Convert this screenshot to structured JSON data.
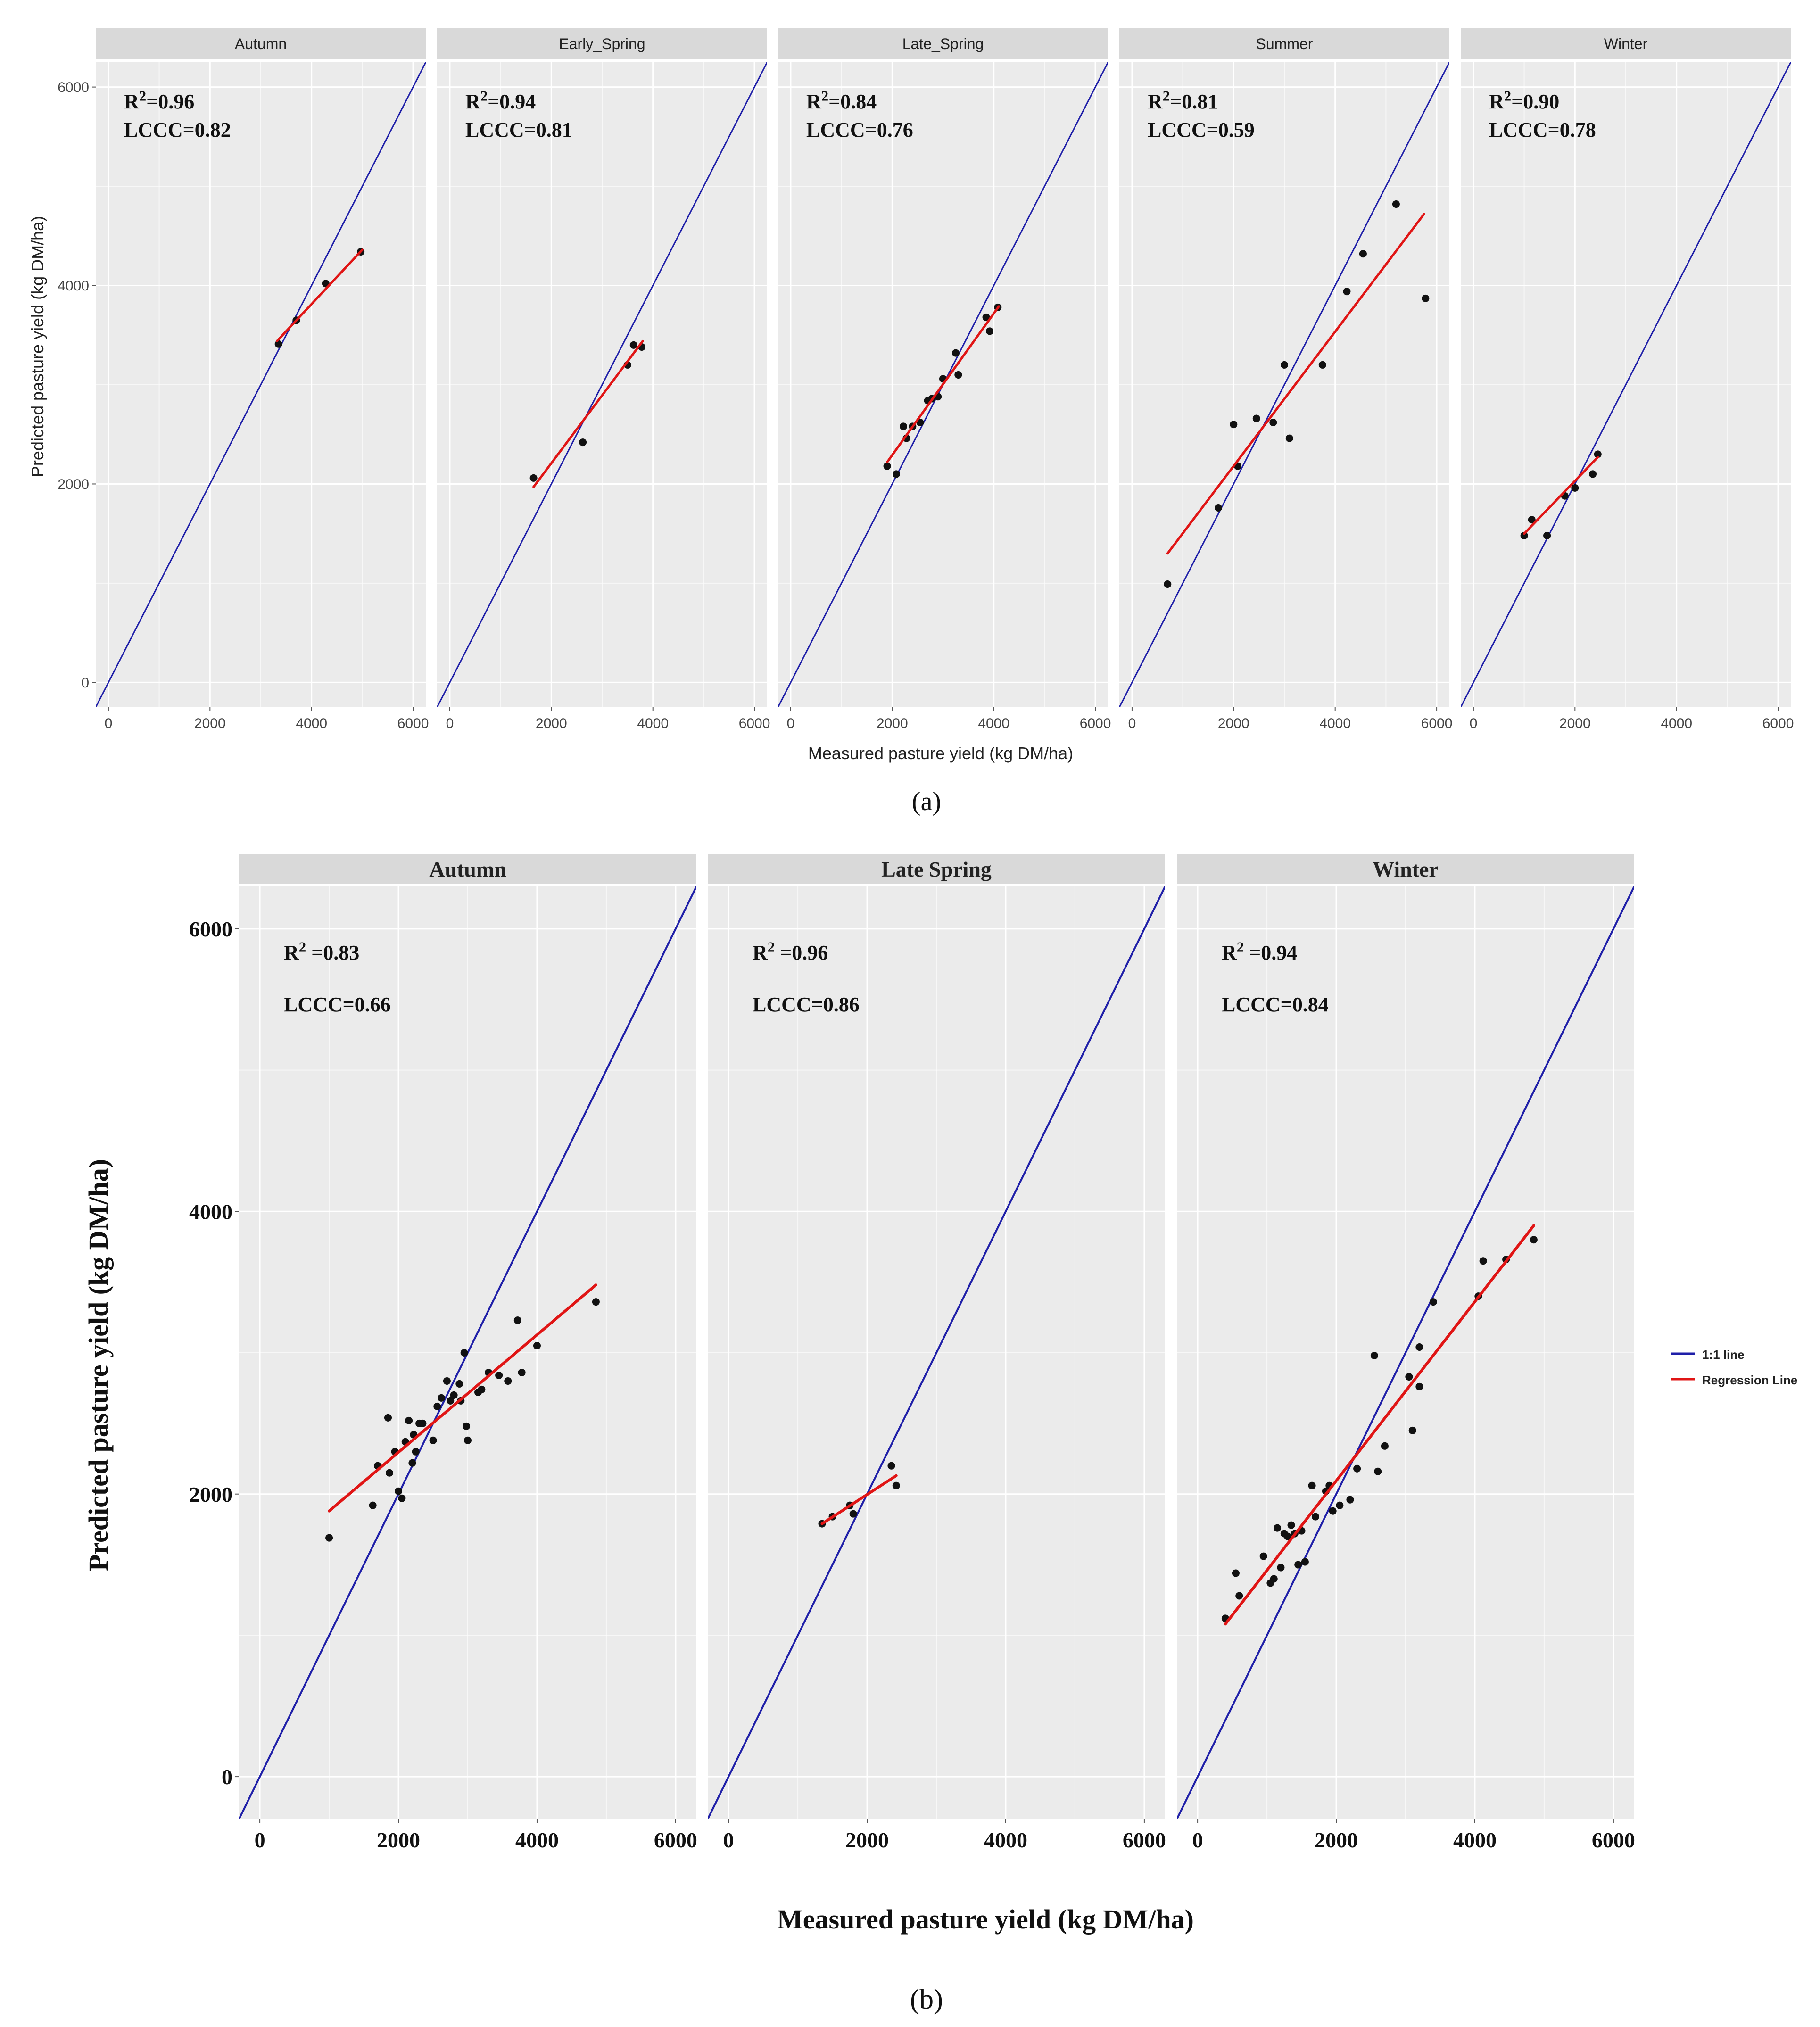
{
  "figure": {
    "panel_a_label": "(a)",
    "panel_b_label": "(b)",
    "colors": {
      "panel_bg": "#ebebeb",
      "strip_bg": "#d9d9d9",
      "grid": "#ffffff",
      "one_to_one": "#1f1fa8",
      "regression": "#e01515",
      "points": "#111111"
    }
  },
  "chart_data": [
    {
      "type": "scatter",
      "panel": "a",
      "xlabel": "Measured pasture yield (kg DM/ha)",
      "ylabel": "Predicted pasture yield (kg DM/ha)",
      "xlim": [
        -250,
        6250
      ],
      "ylim": [
        -250,
        6250
      ],
      "xticks": [
        0,
        2000,
        4000,
        6000
      ],
      "yticks": [
        0,
        2000,
        4000,
        6000
      ],
      "facets": [
        {
          "title": "Autumn",
          "r2_label": "R",
          "r2_value": "=0.96",
          "lccc_label": "LCCC=0.82",
          "points": [
            [
              3350,
              3410
            ],
            [
              3700,
              3650
            ],
            [
              4280,
              4020
            ],
            [
              4970,
              4340
            ]
          ],
          "regression": [
            [
              3320,
              3440
            ],
            [
              5000,
              4360
            ]
          ]
        },
        {
          "title": "Early_Spring",
          "r2_label": "R",
          "r2_value": "=0.94",
          "lccc_label": "LCCC=0.81",
          "points": [
            [
              1650,
              2060
            ],
            [
              2620,
              2420
            ],
            [
              3500,
              3200
            ],
            [
              3620,
              3400
            ],
            [
              3780,
              3380
            ]
          ],
          "regression": [
            [
              1650,
              1970
            ],
            [
              3800,
              3440
            ]
          ]
        },
        {
          "title": "Late_Spring",
          "r2_label": "R",
          "r2_value": "=0.84",
          "lccc_label": "LCCC=0.76",
          "points": [
            [
              1900,
              2180
            ],
            [
              2080,
              2100
            ],
            [
              2220,
              2580
            ],
            [
              2280,
              2460
            ],
            [
              2400,
              2580
            ],
            [
              2550,
              2620
            ],
            [
              2700,
              2840
            ],
            [
              2780,
              2860
            ],
            [
              2900,
              2880
            ],
            [
              3000,
              3060
            ],
            [
              3250,
              3320
            ],
            [
              3300,
              3100
            ],
            [
              3850,
              3680
            ],
            [
              3920,
              3540
            ],
            [
              4080,
              3780
            ]
          ],
          "regression": [
            [
              1900,
              2220
            ],
            [
              4100,
              3790
            ]
          ]
        },
        {
          "title": "Summer",
          "r2_label": "R",
          "r2_value": "=0.81",
          "lccc_label": "LCCC=0.59",
          "points": [
            [
              700,
              990
            ],
            [
              1700,
              1760
            ],
            [
              2000,
              2600
            ],
            [
              2080,
              2180
            ],
            [
              2450,
              2660
            ],
            [
              2780,
              2620
            ],
            [
              3000,
              3200
            ],
            [
              3100,
              2460
            ],
            [
              3750,
              3200
            ],
            [
              4230,
              3940
            ],
            [
              4550,
              4320
            ],
            [
              5200,
              4820
            ],
            [
              5780,
              3870
            ]
          ],
          "regression": [
            [
              700,
              1300
            ],
            [
              5750,
              4720
            ]
          ]
        },
        {
          "title": "Winter",
          "r2_label": "R",
          "r2_value": "=0.90",
          "lccc_label": "LCCC=0.78",
          "points": [
            [
              1000,
              1480
            ],
            [
              1150,
              1640
            ],
            [
              1450,
              1480
            ],
            [
              1800,
              1880
            ],
            [
              2000,
              1960
            ],
            [
              2350,
              2100
            ],
            [
              2450,
              2300
            ]
          ],
          "regression": [
            [
              1000,
              1500
            ],
            [
              2450,
              2270
            ]
          ]
        }
      ]
    },
    {
      "type": "scatter",
      "panel": "b",
      "xlabel": "Measured pasture yield (kg DM/ha)",
      "ylabel": "Predicted pasture yield (kg DM/ha)",
      "xlim": [
        -300,
        6300
      ],
      "ylim": [
        -300,
        6300
      ],
      "xticks": [
        0,
        2000,
        4000,
        6000
      ],
      "yticks": [
        0,
        2000,
        4000,
        6000
      ],
      "legend": {
        "placement": "right",
        "entries": [
          {
            "label": "1:1 line",
            "color": "#1f1fa8"
          },
          {
            "label": "Regression Line",
            "color": "#e01515"
          }
        ]
      },
      "facets": [
        {
          "title": "Autumn",
          "r2_label": "R",
          "r2_value": " =0.83",
          "lccc_label": "LCCC=0.66",
          "points": [
            [
              1000,
              1690
            ],
            [
              1630,
              1920
            ],
            [
              1700,
              2200
            ],
            [
              1850,
              2540
            ],
            [
              1870,
              2150
            ],
            [
              1950,
              2300
            ],
            [
              2000,
              2020
            ],
            [
              2050,
              1970
            ],
            [
              2100,
              2370
            ],
            [
              2150,
              2520
            ],
            [
              2200,
              2220
            ],
            [
              2220,
              2420
            ],
            [
              2250,
              2300
            ],
            [
              2300,
              2500
            ],
            [
              2350,
              2500
            ],
            [
              2500,
              2380
            ],
            [
              2560,
              2620
            ],
            [
              2620,
              2680
            ],
            [
              2700,
              2800
            ],
            [
              2750,
              2660
            ],
            [
              2800,
              2700
            ],
            [
              2880,
              2780
            ],
            [
              2900,
              2660
            ],
            [
              2950,
              3000
            ],
            [
              2980,
              2480
            ],
            [
              3000,
              2380
            ],
            [
              3150,
              2720
            ],
            [
              3200,
              2740
            ],
            [
              3300,
              2860
            ],
            [
              3450,
              2840
            ],
            [
              3580,
              2800
            ],
            [
              3720,
              3230
            ],
            [
              3780,
              2860
            ],
            [
              4000,
              3050
            ],
            [
              4850,
              3360
            ]
          ],
          "regression": [
            [
              1000,
              1880
            ],
            [
              4850,
              3480
            ]
          ]
        },
        {
          "title": "Late Spring",
          "r2_label": "R",
          "r2_value": " =0.96",
          "lccc_label": "LCCC=0.86",
          "points": [
            [
              1350,
              1790
            ],
            [
              1500,
              1840
            ],
            [
              1750,
              1920
            ],
            [
              1800,
              1860
            ],
            [
              2350,
              2200
            ],
            [
              2420,
              2060
            ]
          ],
          "regression": [
            [
              1350,
              1790
            ],
            [
              2420,
              2130
            ]
          ]
        },
        {
          "title": "Winter",
          "r2_label": "R",
          "r2_value": " =0.94",
          "lccc_label": "LCCC=0.84",
          "points": [
            [
              400,
              1120
            ],
            [
              550,
              1440
            ],
            [
              600,
              1280
            ],
            [
              950,
              1560
            ],
            [
              1050,
              1370
            ],
            [
              1100,
              1400
            ],
            [
              1150,
              1760
            ],
            [
              1200,
              1480
            ],
            [
              1250,
              1720
            ],
            [
              1300,
              1700
            ],
            [
              1350,
              1780
            ],
            [
              1400,
              1720
            ],
            [
              1450,
              1500
            ],
            [
              1500,
              1740
            ],
            [
              1550,
              1520
            ],
            [
              1650,
              2060
            ],
            [
              1700,
              1840
            ],
            [
              1850,
              2020
            ],
            [
              1900,
              2060
            ],
            [
              1950,
              1880
            ],
            [
              2050,
              1920
            ],
            [
              2200,
              1960
            ],
            [
              2300,
              2180
            ],
            [
              2550,
              2980
            ],
            [
              2600,
              2160
            ],
            [
              2700,
              2340
            ],
            [
              3050,
              2830
            ],
            [
              3100,
              2450
            ],
            [
              3200,
              2760
            ],
            [
              3200,
              3040
            ],
            [
              3400,
              3360
            ],
            [
              4050,
              3400
            ],
            [
              4120,
              3650
            ],
            [
              4450,
              3660
            ],
            [
              4850,
              3800
            ]
          ],
          "regression": [
            [
              400,
              1080
            ],
            [
              4850,
              3900
            ]
          ]
        }
      ]
    }
  ]
}
